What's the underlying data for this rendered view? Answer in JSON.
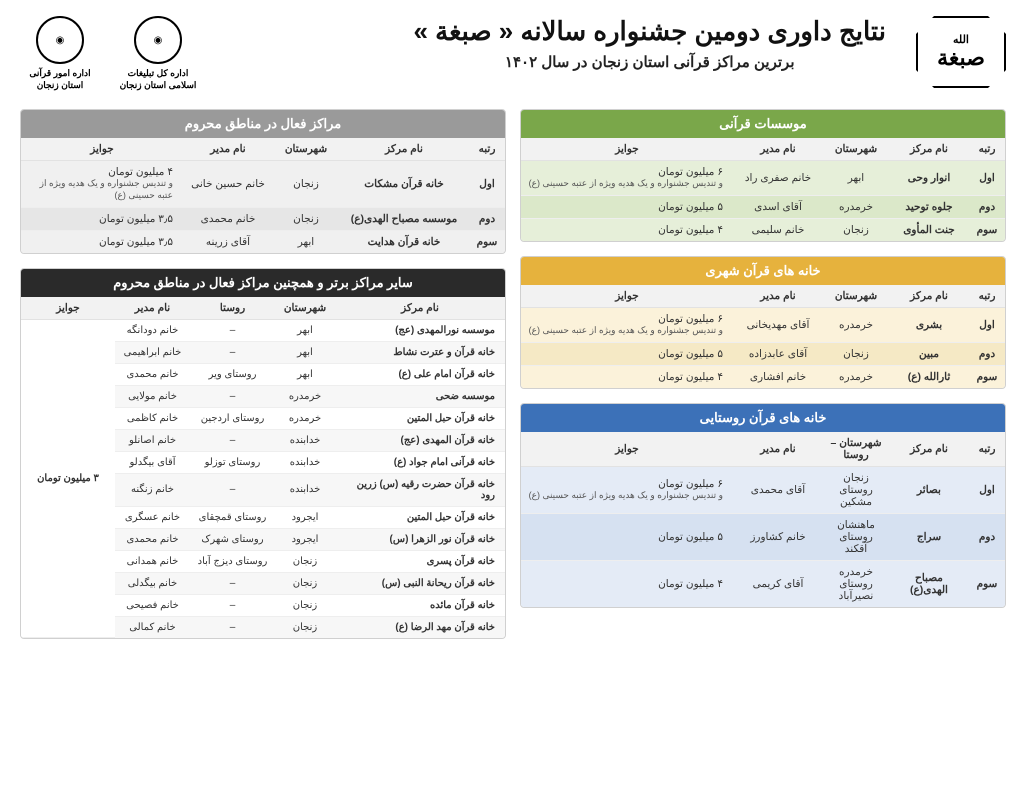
{
  "header": {
    "logo_text": "صبغة",
    "logo_sub": "الله",
    "main_title": "نتایج داوری دومین جشنواره سالانه « صبغة »",
    "sub_title": "برترین مراکز قرآنی استان زنجان در سال ۱۴۰۲",
    "org1_label": "اداره کل تبلیغات اسلامی\nاستان زنجان",
    "org2_label": "اداره امور قرآنی\nاستان زنجان"
  },
  "section_green": {
    "title": "موسسات قرآنی",
    "cols": [
      "رتبه",
      "نام مرکز",
      "شهرستان",
      "نام مدیر",
      "جوایز"
    ],
    "rows": [
      {
        "rank": "اول",
        "center": "انوار وحی",
        "city": "ابهر",
        "mgr": "خانم صفری راد",
        "prize": "۶ میلیون تومان",
        "prize_sub": "و تندیس جشنواره و یک هدیه ویژه از عتبه حسینی (ع)"
      },
      {
        "rank": "دوم",
        "center": "جلوه توحید",
        "city": "خرمدره",
        "mgr": "آقای اسدی",
        "prize": "۵ میلیون تومان",
        "prize_sub": ""
      },
      {
        "rank": "سوم",
        "center": "جنت المأوی",
        "city": "زنجان",
        "mgr": "خانم سلیمی",
        "prize": "۴ میلیون تومان",
        "prize_sub": ""
      }
    ]
  },
  "section_yellow": {
    "title": "خانه های قرآن شهری",
    "cols": [
      "رتبه",
      "نام مرکز",
      "شهرستان",
      "نام مدیر",
      "جوایز"
    ],
    "rows": [
      {
        "rank": "اول",
        "center": "بشری",
        "city": "خرمدره",
        "mgr": "آقای مهدیخانی",
        "prize": "۶ میلیون تومان",
        "prize_sub": "و تندیس جشنواره و یک هدیه ویژه از عتبه حسینی (ع)"
      },
      {
        "rank": "دوم",
        "center": "مبین",
        "city": "زنجان",
        "mgr": "آقای عابدزاده",
        "prize": "۵ میلیون تومان",
        "prize_sub": ""
      },
      {
        "rank": "سوم",
        "center": "ثارالله (ع)",
        "city": "خرمدره",
        "mgr": "خانم افشاری",
        "prize": "۴ میلیون تومان",
        "prize_sub": ""
      }
    ]
  },
  "section_blue": {
    "title": "خانه های قرآن روستایی",
    "cols": [
      "رتبه",
      "نام مرکز",
      "شهرستان – روستا",
      "نام مدیر",
      "جوایز"
    ],
    "rows": [
      {
        "rank": "اول",
        "center": "بصائر",
        "city": "زنجان\nروستای مشکین",
        "mgr": "آقای محمدی",
        "prize": "۶ میلیون تومان",
        "prize_sub": "و تندیس جشنواره و یک هدیه ویژه از عتبه حسینی (ع)"
      },
      {
        "rank": "دوم",
        "center": "سراج",
        "city": "ماهنشان\nروستای آقکند",
        "mgr": "خانم کشاورز",
        "prize": "۵ میلیون تومان",
        "prize_sub": ""
      },
      {
        "rank": "سوم",
        "center": "مصباح الهدی(ع)",
        "city": "خرمدره\nروستای نصیرآباد",
        "mgr": "آقای کریمی",
        "prize": "۴ میلیون تومان",
        "prize_sub": ""
      }
    ]
  },
  "section_gray": {
    "title": "مراکز فعال در مناطق محروم",
    "cols": [
      "رتبه",
      "نام مرکز",
      "شهرستان",
      "نام مدیر",
      "جوایز"
    ],
    "rows": [
      {
        "rank": "اول",
        "center": "خانه قرآن مشکات",
        "city": "زنجان",
        "mgr": "خانم حسین خانی",
        "prize": "۴ میلیون تومان",
        "prize_sub": "و تندیس جشنواره و یک هدیه ویژه از عتبه حسینی (ع)"
      },
      {
        "rank": "دوم",
        "center": "موسسه مصباح الهدی(ع)",
        "city": "زنجان",
        "mgr": "خانم محمدی",
        "prize": "۳٫۵ میلیون تومان",
        "prize_sub": ""
      },
      {
        "rank": "سوم",
        "center": "خانه قرآن هدایت",
        "city": "ابهر",
        "mgr": "آقای زرینه",
        "prize": "۳٫۵ میلیون تومان",
        "prize_sub": ""
      }
    ]
  },
  "section_black": {
    "title": "سایر مراکز برتر و همچنین مراکز فعال در مناطق محروم",
    "cols": [
      "نام مرکز",
      "شهرستان",
      "روستا",
      "نام مدیر",
      "جوایز"
    ],
    "merged_prize": "۳ میلیون تومان",
    "rows": [
      {
        "center": "موسسه نورالمهدی (عج)",
        "city": "ابهر",
        "village": "–",
        "mgr": "خانم دودانگه"
      },
      {
        "center": "خانه قرآن و عترت نشاط",
        "city": "ابهر",
        "village": "–",
        "mgr": "خانم ابراهیمی"
      },
      {
        "center": "خانه قرآن امام علی (ع)",
        "city": "ابهر",
        "village": "روستای ویر",
        "mgr": "خانم محمدی"
      },
      {
        "center": "موسسه ضحی",
        "city": "خرمدره",
        "village": "–",
        "mgr": "خانم مولایی"
      },
      {
        "center": "خانه قرآن حبل المتین",
        "city": "خرمدره",
        "village": "روستای اردجین",
        "mgr": "خانم کاظمی"
      },
      {
        "center": "خانه قرآن المهدی (عج)",
        "city": "خدابنده",
        "village": "–",
        "mgr": "خانم اصانلو"
      },
      {
        "center": "خانه قرآنی امام جواد (ع)",
        "city": "خدابنده",
        "village": "روستای توزلو",
        "mgr": "آقای بیگدلو"
      },
      {
        "center": "خانه قرآن حضرت رقیه (س) زرین رود",
        "city": "خدابنده",
        "village": "–",
        "mgr": "خانم زنگنه"
      },
      {
        "center": "خانه قرآن حبل المتین",
        "city": "ایجرود",
        "village": "روستای قمچقای",
        "mgr": "خانم عسگری"
      },
      {
        "center": "خانه قرآن نور الزهرا (س)",
        "city": "ایجرود",
        "village": "روستای شهرک",
        "mgr": "خانم محمدی"
      },
      {
        "center": "خانه قرآن پسری",
        "city": "زنجان",
        "village": "روستای دیزج آباد",
        "mgr": "خانم همدانی"
      },
      {
        "center": "خانه قرآن ریحانة النبی (س)",
        "city": "زنجان",
        "village": "–",
        "mgr": "خانم بیگدلی"
      },
      {
        "center": "خانه قرآن مائده",
        "city": "زنجان",
        "village": "–",
        "mgr": "خانم فصیحی"
      },
      {
        "center": "خانه قرآن مهد الرضا (ع)",
        "city": "زنجان",
        "village": "–",
        "mgr": "خانم کمالی"
      }
    ]
  }
}
